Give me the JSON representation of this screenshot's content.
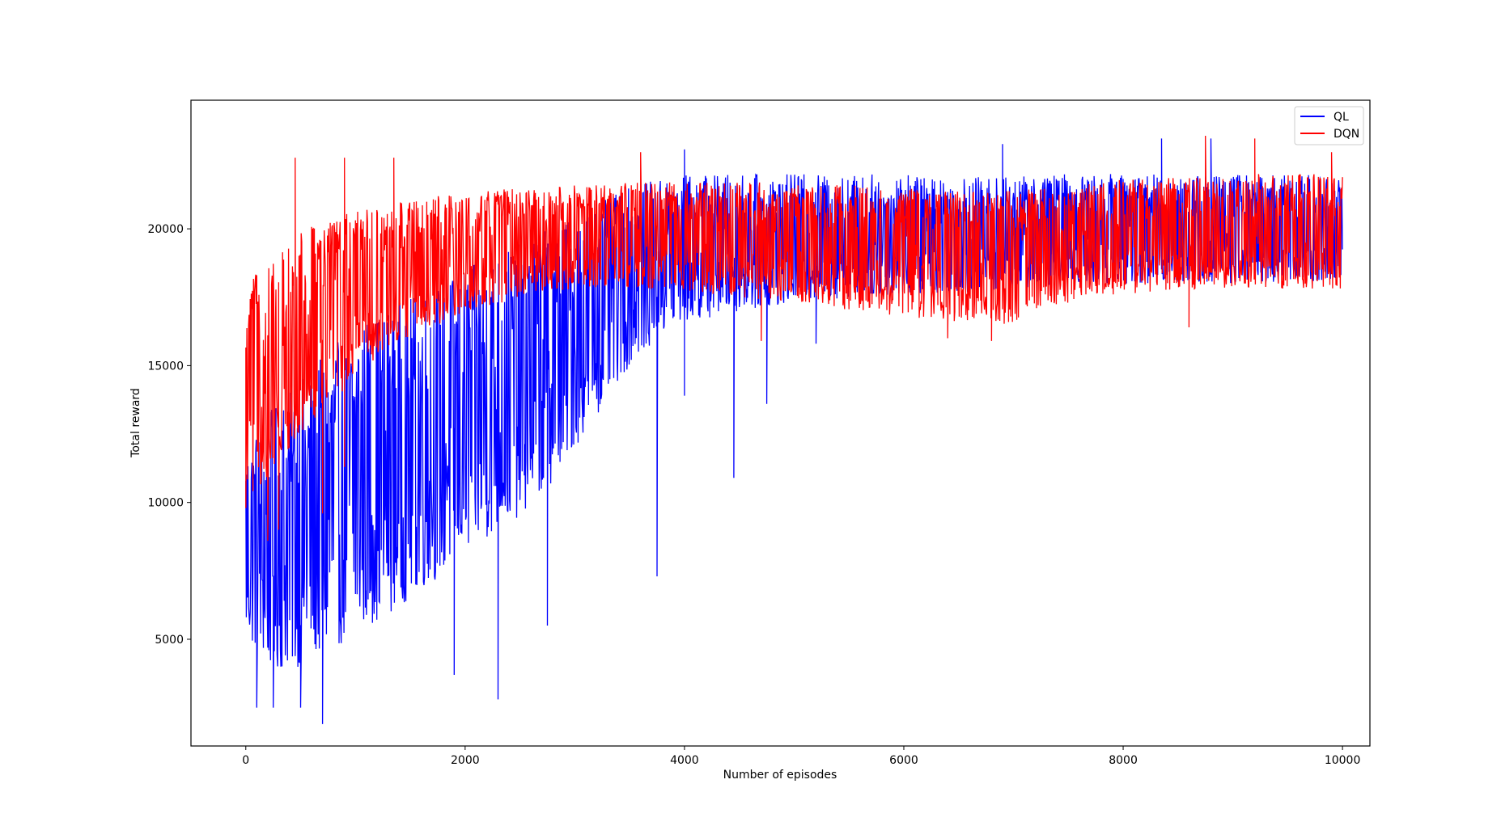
{
  "chart_data": {
    "type": "line",
    "title": "",
    "xlabel": "Number of episodes",
    "ylabel": "Total reward",
    "xlim": [
      -500,
      10250
    ],
    "ylim": [
      1100,
      24700
    ],
    "x_ticks": [
      0,
      2000,
      4000,
      6000,
      8000,
      10000
    ],
    "x_tick_labels": [
      "0",
      "2000",
      "4000",
      "6000",
      "8000",
      "10000"
    ],
    "y_ticks": [
      5000,
      10000,
      15000,
      20000
    ],
    "y_tick_labels": [
      "5000",
      "10000",
      "15000",
      "20000"
    ],
    "grid": false,
    "legend_position": "top-right",
    "episodes": 10000,
    "series": [
      {
        "name": "QL",
        "color": "#0000ff",
        "envelope_x": [
          0,
          250,
          500,
          750,
          1000,
          1250,
          1500,
          1750,
          2000,
          2250,
          2500,
          2750,
          3000,
          3250,
          3500,
          3750,
          4000,
          4500,
          5000,
          5500,
          6000,
          6500,
          7000,
          7500,
          8000,
          8500,
          9000,
          9500,
          10000
        ],
        "envelope_low": [
          5000,
          3800,
          4000,
          4500,
          5200,
          5800,
          6500,
          7200,
          8000,
          8800,
          9500,
          10500,
          12000,
          13500,
          15000,
          16000,
          16500,
          17000,
          17300,
          17500,
          17600,
          17700,
          17800,
          18000,
          18000,
          18000,
          18000,
          18000,
          18000
        ],
        "envelope_high": [
          12000,
          13500,
          14500,
          15500,
          16500,
          17000,
          17500,
          18000,
          18500,
          19000,
          19500,
          20000,
          20500,
          21000,
          21500,
          21800,
          22000,
          22000,
          22000,
          22000,
          22000,
          21900,
          21900,
          22000,
          22000,
          22000,
          22000,
          22000,
          22000
        ],
        "min_dips": [
          [
            100,
            2500
          ],
          [
            250,
            2500
          ],
          [
            500,
            2500
          ],
          [
            700,
            1900
          ],
          [
            1900,
            3700
          ],
          [
            2300,
            2800
          ],
          [
            2750,
            5500
          ],
          [
            3750,
            7300
          ],
          [
            4000,
            13900
          ],
          [
            4450,
            10900
          ],
          [
            4750,
            13600
          ],
          [
            5200,
            15800
          ]
        ],
        "max_spikes": [
          [
            4000,
            22900
          ],
          [
            6900,
            23100
          ],
          [
            8350,
            23300
          ],
          [
            8800,
            23300
          ]
        ]
      },
      {
        "name": "DQN",
        "color": "#ff0000",
        "envelope_x": [
          0,
          250,
          500,
          750,
          1000,
          1250,
          1500,
          1750,
          2000,
          2250,
          2500,
          2750,
          3000,
          3250,
          3500,
          3750,
          4000,
          4500,
          5000,
          5500,
          6000,
          6500,
          7000,
          7500,
          8000,
          8500,
          9000,
          9500,
          10000
        ],
        "envelope_low": [
          10000,
          11000,
          12500,
          13500,
          14500,
          15500,
          16000,
          16500,
          17000,
          17200,
          17500,
          17700,
          17800,
          17800,
          17800,
          17800,
          17700,
          17500,
          17300,
          17000,
          16800,
          16600,
          16500,
          17300,
          17600,
          17800,
          17800,
          17800,
          17800
        ],
        "envelope_high": [
          18000,
          19000,
          20000,
          20300,
          20700,
          20900,
          21000,
          21200,
          21300,
          21400,
          21500,
          21500,
          21600,
          21600,
          21700,
          21700,
          21700,
          21700,
          21700,
          21600,
          21500,
          21400,
          21400,
          21600,
          21800,
          21900,
          22000,
          22000,
          22000
        ],
        "min_dips": [
          [
            0,
            9800
          ],
          [
            200,
            8600
          ],
          [
            300,
            9000
          ],
          [
            700,
            9600
          ],
          [
            900,
            11300
          ],
          [
            4700,
            15900
          ],
          [
            6400,
            16000
          ],
          [
            6800,
            15900
          ],
          [
            8600,
            16400
          ]
        ],
        "max_spikes": [
          [
            450,
            22600
          ],
          [
            900,
            22600
          ],
          [
            1350,
            22600
          ],
          [
            3600,
            22800
          ],
          [
            8750,
            23400
          ],
          [
            9200,
            23300
          ],
          [
            9900,
            22800
          ]
        ]
      }
    ]
  }
}
